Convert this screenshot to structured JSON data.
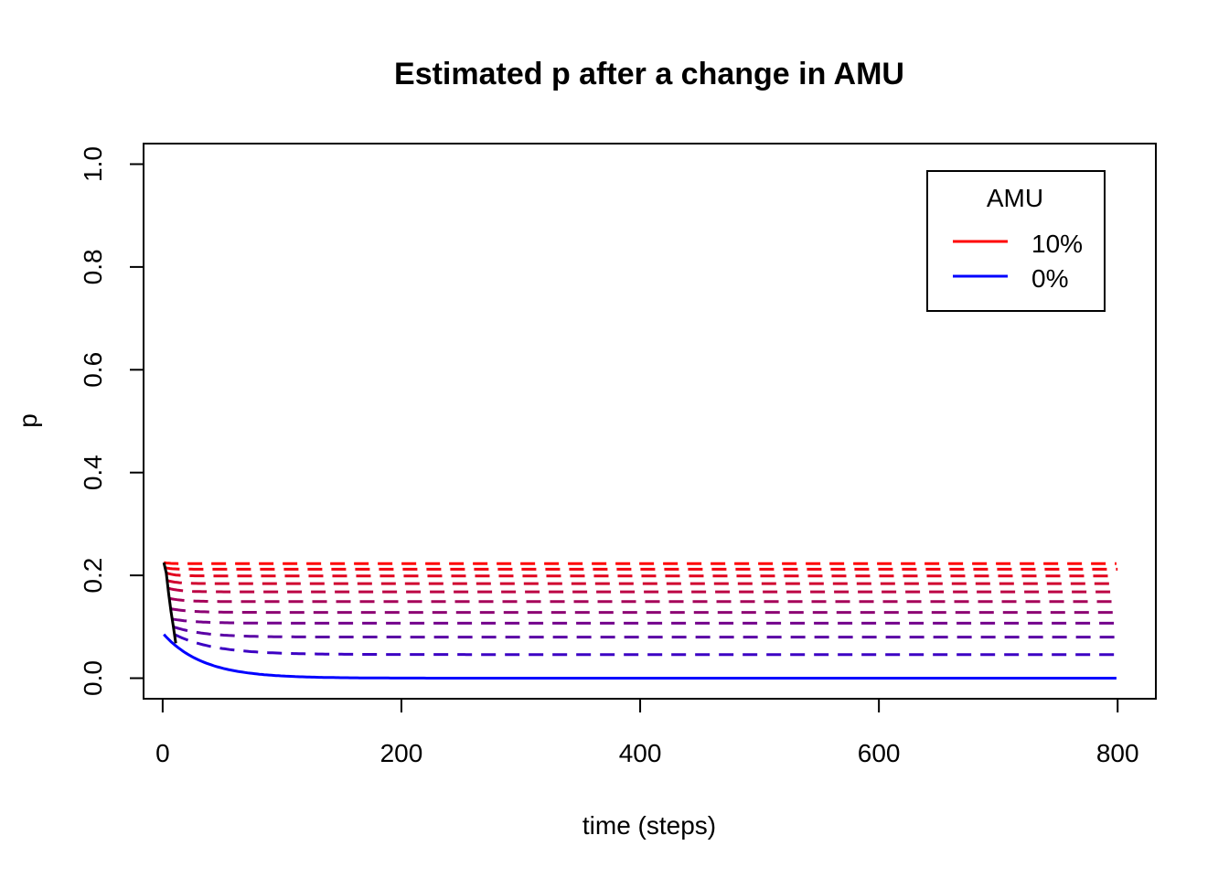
{
  "chart_data": {
    "type": "line",
    "title": "Estimated p after a change in AMU",
    "xlabel": "time (steps)",
    "ylabel": "p",
    "xlim": [
      -16,
      832
    ],
    "ylim": [
      -0.04,
      1.04
    ],
    "xticks": [
      0,
      200,
      400,
      600,
      800
    ],
    "yticks": [
      0.0,
      0.2,
      0.4,
      0.6,
      0.8,
      1.0
    ],
    "xtick_labels": [
      "0",
      "200",
      "400",
      "600",
      "800"
    ],
    "ytick_labels": [
      "0.0",
      "0.2",
      "0.4",
      "0.6",
      "0.8",
      "1.0"
    ],
    "grid": false,
    "legend": {
      "title": "AMU",
      "position": "top-right",
      "entries": [
        {
          "label": "10%",
          "color": "#ff0000"
        },
        {
          "label": "0%",
          "color": "#0000ff"
        }
      ]
    },
    "baseline_curve": {
      "color": "#000000",
      "style": "solid",
      "x": [
        1,
        3,
        5,
        7,
        9,
        11
      ],
      "y": [
        0.225,
        0.205,
        0.165,
        0.13,
        0.1,
        0.068
      ]
    },
    "series": [
      {
        "color": "#ff0000",
        "style": "dashed",
        "start_x": 1,
        "start_y": 0.225,
        "plateau": 0.223,
        "rate": 0.3
      },
      {
        "color": "#f2000d",
        "style": "dashed",
        "start_x": 2,
        "start_y": 0.215,
        "plateau": 0.212,
        "rate": 0.2
      },
      {
        "color": "#e2001d",
        "style": "dashed",
        "start_x": 3,
        "start_y": 0.205,
        "plateau": 0.199,
        "rate": 0.15
      },
      {
        "color": "#d0002f",
        "style": "dashed",
        "start_x": 4,
        "start_y": 0.19,
        "plateau": 0.184,
        "rate": 0.12
      },
      {
        "color": "#bc0043",
        "style": "dashed",
        "start_x": 5,
        "start_y": 0.175,
        "plateau": 0.168,
        "rate": 0.1
      },
      {
        "color": "#a50059",
        "style": "dashed",
        "start_x": 6,
        "start_y": 0.155,
        "plateau": 0.149,
        "rate": 0.08
      },
      {
        "color": "#8c0073",
        "style": "dashed",
        "start_x": 7,
        "start_y": 0.135,
        "plateau": 0.128,
        "rate": 0.065
      },
      {
        "color": "#73008c",
        "style": "dashed",
        "start_x": 8,
        "start_y": 0.115,
        "plateau": 0.107,
        "rate": 0.05
      },
      {
        "color": "#5a00a5",
        "style": "dashed",
        "start_x": 9,
        "start_y": 0.1,
        "plateau": 0.08,
        "rate": 0.04
      },
      {
        "color": "#3c00c3",
        "style": "dashed",
        "start_x": 10,
        "start_y": 0.085,
        "plateau": 0.046,
        "rate": 0.03
      },
      {
        "color": "#0000ff",
        "style": "solid",
        "start_x": 1,
        "start_y": 0.085,
        "plateau": 0.0,
        "rate": 0.03
      }
    ]
  }
}
